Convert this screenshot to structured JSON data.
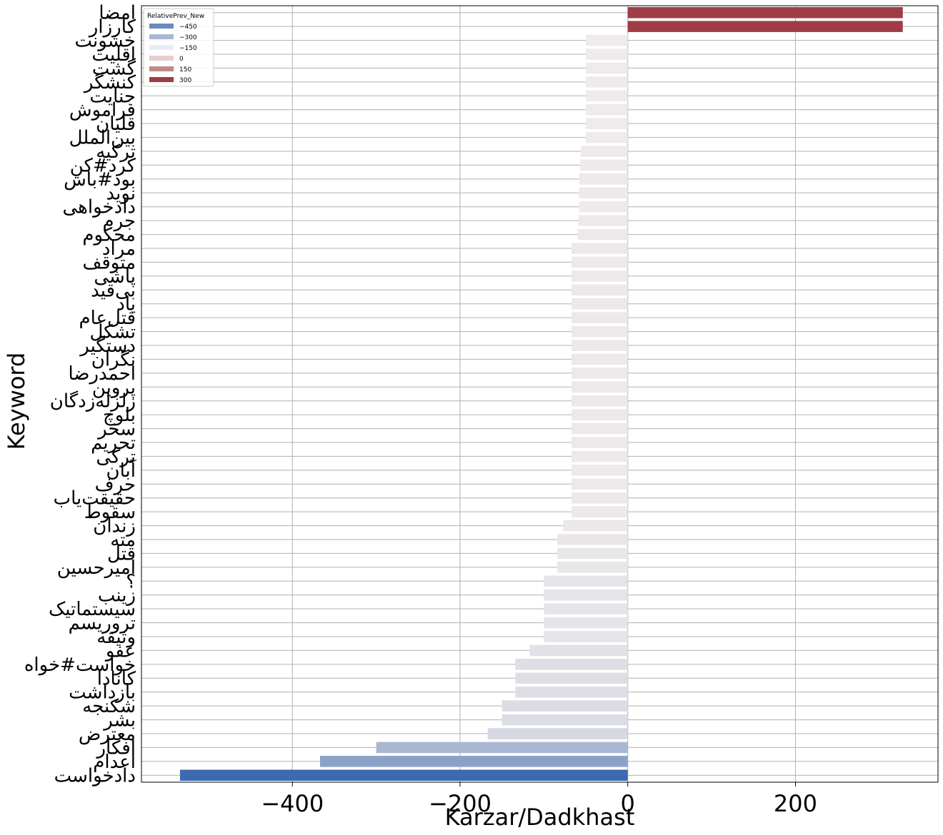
{
  "chart_data": {
    "type": "bar",
    "orientation": "horizontal",
    "xlabel": "Karzar/Dadkhast",
    "ylabel": "Keyword",
    "xlim": [
      -580,
      370
    ],
    "xticks": [
      -400,
      -200,
      0,
      200
    ],
    "xtick_labels": [
      "−400",
      "−200",
      "0",
      "200"
    ],
    "grid": true,
    "legend": {
      "title": "RelativePrev_New",
      "position": "top-left",
      "entries": [
        {
          "label": "−450",
          "color": "#6a8cbc"
        },
        {
          "label": "−300",
          "color": "#a9b8d2"
        },
        {
          "label": "−150",
          "color": "#e9ecf2"
        },
        {
          "label": "0",
          "color": "#e7cdcd"
        },
        {
          "label": "150",
          "color": "#be8a8a"
        },
        {
          "label": "300",
          "color": "#a03c46"
        }
      ]
    },
    "categories": [
      "امضا",
      "کارزار",
      "خشونت",
      "اقلیت",
      "گشت",
      "کنشگر",
      "جنایت",
      "فراموش",
      "قلیان",
      "بین‌الملل",
      "ترکیه",
      "کرد#کن",
      "بود#باش",
      "نوید",
      "دادخواهی",
      "جرم",
      "محکوم",
      "مراد",
      "متوقف",
      "پاشی",
      "بی‌قید",
      "یاد",
      "قتل‌عام",
      "تشکل",
      "دستگیر",
      "نگران",
      "احمدرضا",
      "پروین",
      "زلزله‌زدگان",
      "بلوچ",
      "سحر",
      "تحریم",
      "ترکی",
      "آبان",
      "حرف",
      "حقیقت‌یاب",
      "سقوط",
      "زندان",
      "مته",
      "قتل",
      "امیرحسین",
      "؟",
      "زینب",
      "سیستماتیک",
      "تروریسم",
      "وثیقه",
      "عفو",
      "خواست#خواه",
      "کانادا",
      "بازداشت",
      "شکنجه",
      "بشر",
      "معترض",
      "افکار",
      "اعدام",
      "دادخواست"
    ],
    "values": [
      328,
      328,
      -50,
      -50,
      -50,
      -50,
      -50,
      -50,
      -50,
      -50,
      -56,
      -57,
      -58,
      -58,
      -58,
      -59,
      -60,
      -67,
      -67,
      -67,
      -67,
      -67,
      -67,
      -67,
      -67,
      -67,
      -67,
      -67,
      -67,
      -67,
      -67,
      -67,
      -67,
      -67,
      -67,
      -67,
      -67,
      -77,
      -84,
      -84,
      -84,
      -100,
      -100,
      -100,
      -100,
      -100,
      -117,
      -134,
      -134,
      -134,
      -150,
      -150,
      -167,
      -300,
      -367,
      -534
    ]
  }
}
